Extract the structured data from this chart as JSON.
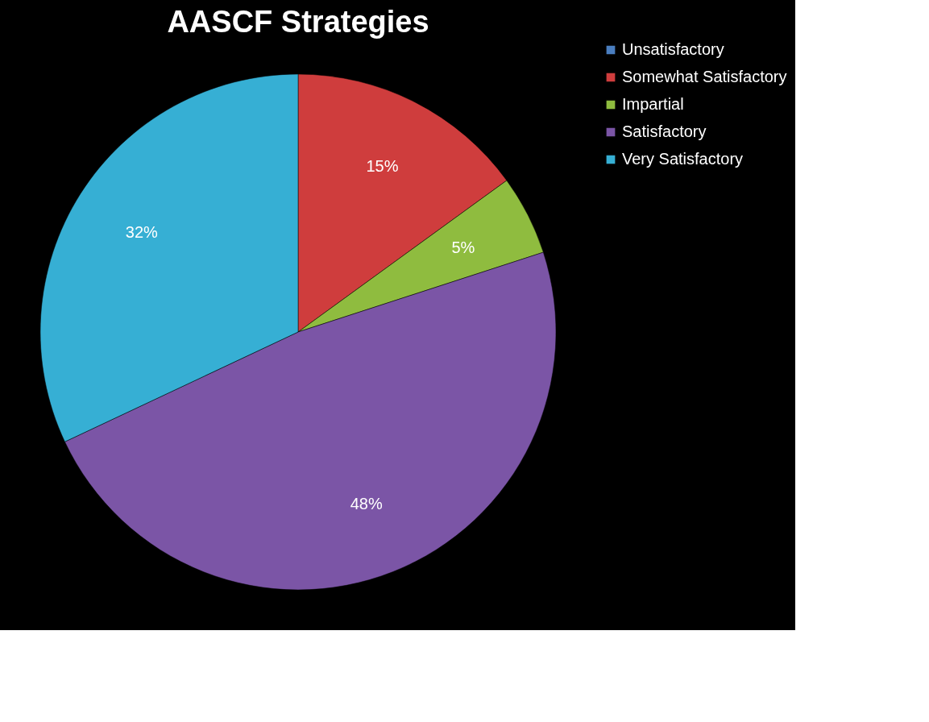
{
  "chart_data": {
    "type": "pie",
    "title": "AASCF Strategies",
    "categories": [
      "Unsatisfactory",
      "Somewhat Satisfactory",
      "Impartial",
      "Satisfactory",
      "Very Satisfactory"
    ],
    "values": [
      0,
      15,
      5,
      48,
      32
    ],
    "colors": [
      "#4a7ebf",
      "#cf3d3d",
      "#8fbc3f",
      "#7b55a6",
      "#36afd4"
    ],
    "value_labels": [
      null,
      "15%",
      "5%",
      "48%",
      "32%"
    ],
    "legend": "right"
  }
}
